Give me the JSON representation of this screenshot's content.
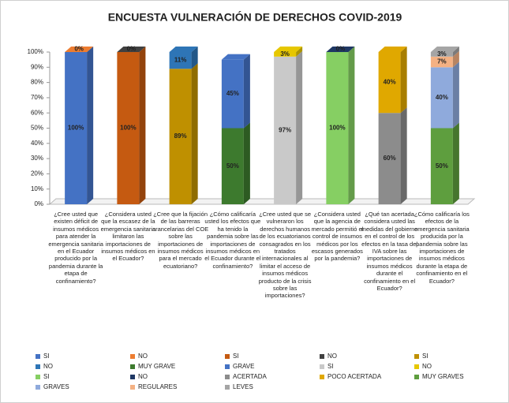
{
  "chart_data": {
    "type": "bar3d-stacked",
    "title": "ENCUESTA VULNERACIÓN DE DERECHOS COVID-2019",
    "categories": [
      "¿Cree usted que existen déficit de insumos médicos para atender la emergencia sanitaria en el Ecuador producido por la pandemia durante la etapa de confinamiento?",
      "¿Considera usted que la escasez de la emergencia sanitaria limitaron las importaciones de insumos médicos en el Ecuador?",
      "¿Cree que la fijación de las barreras arancelarias del COE sobre las importaciones de insumos médicos para el mercado ecuatoriano?",
      "¿Cómo calificaría usted los efectos que ha tenido la pandemia sobre las importaciones de insumos médicos en el Ecuador durante el confinamiento?",
      "¿Cree usted que se vulneraron los derechos humanos de los ecuatorianos consagrados en los tratados internacionales al limitar el acceso de insumos médicos producto de la crisis sobre las importaciones?",
      "¿Considera usted que la agencia de mercado permitió el control de insumos médicos por los escasos generados por la pandemia?",
      "¿Qué tan acertada considera usted las medidas del gobierno en el control de los efectos en la tasa del IVA sobre las importaciones de insumos médicos durante el confinamiento en el Ecuador?",
      "¿Cómo calificaría los efectos de la emergencia sanitaria producida por la pandemia sobre las importaciones de insumos médicos durante la etapa de confinamiento en el Ecuador?"
    ],
    "series": [
      {
        "name": "SI",
        "color": "#4472c4",
        "values": [
          100,
          null,
          null,
          null,
          null,
          null,
          null,
          null
        ],
        "value_labels": [
          "100%",
          null,
          null,
          null,
          null,
          null,
          null,
          null
        ]
      },
      {
        "name": "NO",
        "color": "#ed7d31",
        "values": [
          0,
          null,
          null,
          null,
          null,
          null,
          null,
          null
        ],
        "value_labels": [
          "0%",
          null,
          null,
          null,
          null,
          null,
          null,
          null
        ]
      },
      {
        "name": "SI",
        "color": "#c55a11",
        "values": [
          null,
          100,
          null,
          null,
          null,
          null,
          null,
          null
        ],
        "value_labels": [
          null,
          "100%",
          null,
          null,
          null,
          null,
          null,
          null
        ]
      },
      {
        "name": "NO",
        "color": "#404040",
        "values": [
          null,
          0,
          null,
          null,
          null,
          null,
          null,
          null
        ],
        "value_labels": [
          null,
          "0%",
          null,
          null,
          null,
          null,
          null,
          null
        ]
      },
      {
        "name": "SI",
        "color": "#bf9000",
        "values": [
          null,
          null,
          89,
          null,
          null,
          null,
          null,
          null
        ],
        "value_labels": [
          null,
          null,
          "89%",
          null,
          null,
          null,
          null,
          null
        ]
      },
      {
        "name": "NO",
        "color": "#2e75b6",
        "values": [
          null,
          null,
          11,
          null,
          null,
          null,
          null,
          null
        ],
        "value_labels": [
          null,
          null,
          "11%",
          null,
          null,
          null,
          null,
          null
        ]
      },
      {
        "name": "MUY GRAVE",
        "color": "#3d7a2e",
        "values": [
          null,
          null,
          null,
          50,
          null,
          null,
          null,
          null
        ],
        "value_labels": [
          null,
          null,
          null,
          "50%",
          null,
          null,
          null,
          null
        ]
      },
      {
        "name": "GRAVE",
        "color": "#4472c4",
        "values": [
          null,
          null,
          null,
          45,
          null,
          null,
          null,
          null
        ],
        "value_labels": [
          null,
          null,
          null,
          "45%",
          null,
          null,
          null,
          null
        ]
      },
      {
        "name": "SI",
        "color": "#c9c9c9",
        "values": [
          null,
          null,
          null,
          null,
          97,
          null,
          null,
          null
        ],
        "value_labels": [
          null,
          null,
          null,
          null,
          "97%",
          null,
          null,
          null
        ]
      },
      {
        "name": "NO",
        "color": "#e6c700",
        "values": [
          null,
          null,
          null,
          null,
          3,
          null,
          null,
          null
        ],
        "value_labels": [
          null,
          null,
          null,
          null,
          "3%",
          null,
          null,
          null
        ]
      },
      {
        "name": "SI",
        "color": "#86cf63",
        "values": [
          null,
          null,
          null,
          null,
          null,
          100,
          null,
          null
        ],
        "value_labels": [
          null,
          null,
          null,
          null,
          null,
          "100%",
          null,
          null
        ]
      },
      {
        "name": "NO",
        "color": "#1f3864",
        "values": [
          null,
          null,
          null,
          null,
          null,
          0,
          null,
          null
        ],
        "value_labels": [
          null,
          null,
          null,
          null,
          null,
          "0%",
          null,
          null
        ]
      },
      {
        "name": "ACERTADA",
        "color": "#8c8c8c",
        "values": [
          null,
          null,
          null,
          null,
          null,
          null,
          60,
          null
        ],
        "value_labels": [
          null,
          null,
          null,
          null,
          null,
          null,
          "60%",
          null
        ]
      },
      {
        "name": "POCO ACERTADA",
        "color": "#e0a800",
        "values": [
          null,
          null,
          null,
          null,
          null,
          null,
          40,
          null
        ],
        "value_labels": [
          null,
          null,
          null,
          null,
          null,
          null,
          "40%",
          null
        ]
      },
      {
        "name": "MUY GRAVES",
        "color": "#5e9e3e",
        "values": [
          null,
          null,
          null,
          null,
          null,
          null,
          null,
          50
        ],
        "value_labels": [
          null,
          null,
          null,
          null,
          null,
          null,
          null,
          "50%"
        ]
      },
      {
        "name": "GRAVES",
        "color": "#8faadc",
        "values": [
          null,
          null,
          null,
          null,
          null,
          null,
          null,
          40
        ],
        "value_labels": [
          null,
          null,
          null,
          null,
          null,
          null,
          null,
          "40%"
        ]
      },
      {
        "name": "REGULARES",
        "color": "#f4b183",
        "values": [
          null,
          null,
          null,
          null,
          null,
          null,
          null,
          7
        ],
        "value_labels": [
          null,
          null,
          null,
          null,
          null,
          null,
          null,
          "7%"
        ]
      },
      {
        "name": "LEVES",
        "color": "#a5a5a5",
        "values": [
          null,
          null,
          null,
          null,
          null,
          null,
          null,
          3
        ],
        "value_labels": [
          null,
          null,
          null,
          null,
          null,
          null,
          null,
          "3%"
        ]
      }
    ],
    "ylim": [
      0,
      100
    ],
    "yticks": [
      {
        "value": 0,
        "label": "0%"
      },
      {
        "value": 10,
        "label": "10%"
      },
      {
        "value": 20,
        "label": "20%"
      },
      {
        "value": 30,
        "label": "30%"
      },
      {
        "value": 40,
        "label": "40%"
      },
      {
        "value": 50,
        "label": "50%"
      },
      {
        "value": 60,
        "label": "60%"
      },
      {
        "value": 70,
        "label": "70%"
      },
      {
        "value": 80,
        "label": "80%"
      },
      {
        "value": 90,
        "label": "90%"
      },
      {
        "value": 100,
        "label": "100%"
      }
    ],
    "grid": false,
    "legend": "bottom"
  }
}
